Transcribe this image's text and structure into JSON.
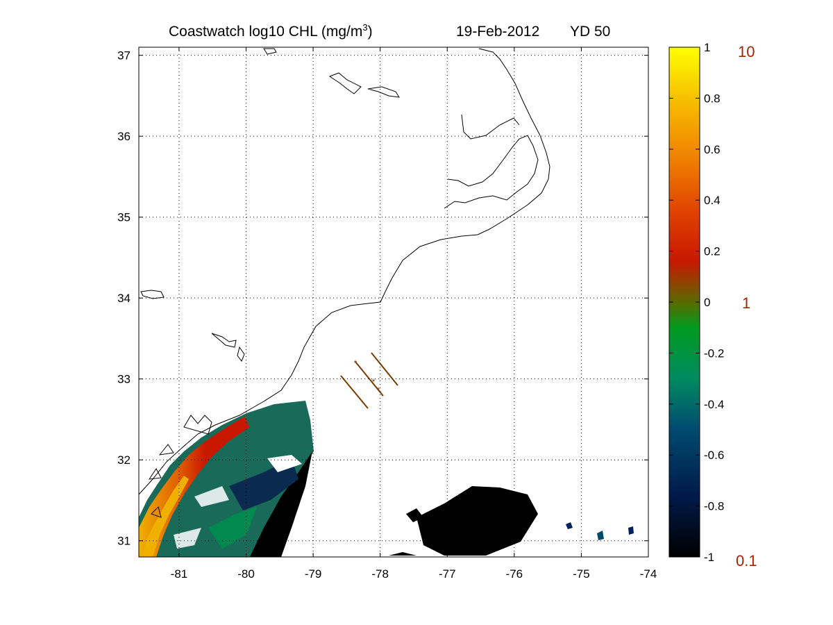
{
  "title": {
    "prefix": "Coastwatch  log10  CHL (mg/m",
    "superscript": "3",
    "suffix": ")",
    "date": "19-Feb-2012",
    "yearday": "YD 50"
  },
  "map": {
    "lon_range": [
      -81.6,
      -74
    ],
    "lat_range": [
      30.8,
      37.1
    ],
    "x_ticks": [
      "-81",
      "-80",
      "-79",
      "-78",
      "-77",
      "-76",
      "-75",
      "-74"
    ],
    "y_ticks": [
      "37",
      "36",
      "35",
      "34",
      "33",
      "32",
      "31"
    ],
    "grid": "dotted"
  },
  "colorbar": {
    "variable": "log10 CHL",
    "range": [
      -1,
      1
    ],
    "ticks": [
      "1",
      "0.8",
      "0.6",
      "0.4",
      "0.2",
      "0",
      "-0.2",
      "-0.4",
      "-0.6",
      "-0.8",
      "-1"
    ],
    "chl_labels": [
      "10",
      "1",
      "0.1"
    ],
    "chl_label_color": "#aa2200",
    "colors": [
      "#000000",
      "#002060",
      "#008860",
      "#00a040",
      "#008a00",
      "#a02000",
      "#e04000",
      "#f07000",
      "#f8a000",
      "#ffe000",
      "#ffff00"
    ]
  }
}
